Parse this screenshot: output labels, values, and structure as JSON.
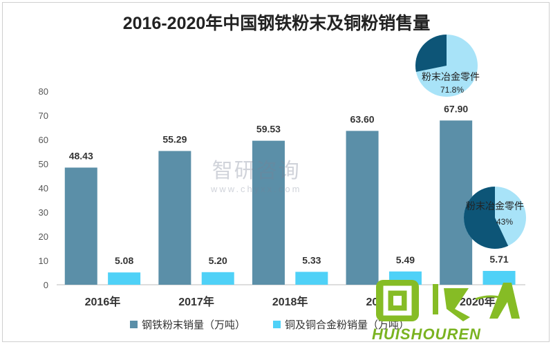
{
  "chart_data": {
    "type": "bar",
    "title": "2016-2020年中国钢铁粉末及铜粉销售量",
    "categories": [
      "2016年",
      "2017年",
      "2018年",
      "2019年",
      "2020年"
    ],
    "series": [
      {
        "name": "钢铁粉末销量（万吨）",
        "values": [
          48.43,
          55.29,
          59.53,
          63.6,
          67.9
        ],
        "labels": [
          "48.43",
          "55.29",
          "59.53",
          "63.60",
          "67.90"
        ],
        "color": "#5b8fa8"
      },
      {
        "name": "铜及铜合金粉销量（万吨）",
        "values": [
          5.08,
          5.2,
          5.33,
          5.49,
          5.71
        ],
        "labels": [
          "5.08",
          "5.20",
          "5.33",
          "5.49",
          "5.71"
        ],
        "color": "#4fd1f7"
      }
    ],
    "yticks": [
      0,
      10,
      20,
      30,
      40,
      50,
      60,
      70,
      80
    ],
    "ylim": [
      0,
      80
    ],
    "grid": false,
    "legend_position": "bottom",
    "insets": [
      {
        "type": "pie",
        "label": "粉末冶金零件",
        "value_text": "71.8%",
        "fraction": 0.718,
        "main_color": "#a8e3f8",
        "other_color": "#0d5577"
      },
      {
        "type": "pie",
        "label": "粉末冶金零件",
        "value_text": "43%",
        "fraction": 0.43,
        "main_color": "#a8e3f8",
        "other_color": "#0d5577"
      }
    ]
  },
  "watermark": {
    "main": "智研咨询",
    "sub": "www.chyxx.com"
  },
  "logo": {
    "text": "HUISHOUREN",
    "glyphs": "回收人"
  }
}
